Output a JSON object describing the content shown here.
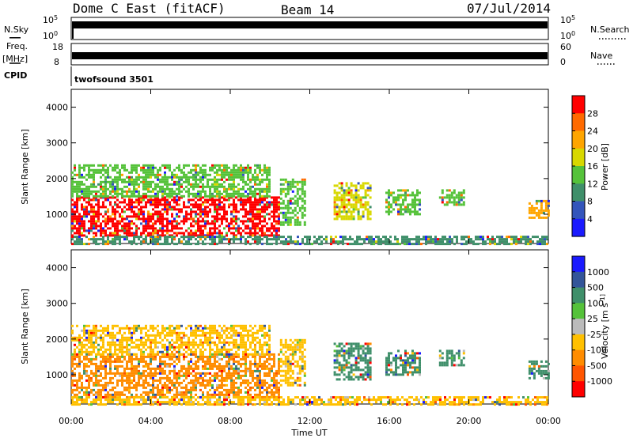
{
  "header": {
    "site": "Dome C East (fitACF)",
    "beam": "Beam 14",
    "date": "07/Jul/2014"
  },
  "upper_panels": {
    "nsky_label": "N.Sky",
    "nsky_ticks": [
      "10^5",
      "10^0"
    ],
    "nsearch_label": "N.Search",
    "nsearch_ticks": [
      "10^5",
      "10^0"
    ],
    "freq_label": "Freq.",
    "freq_unit": "[MHz]",
    "freq_ticks": [
      "18",
      "8"
    ],
    "nave_label": "Nave",
    "nave_ticks": [
      "60",
      "0"
    ],
    "cpid_label": "CPID",
    "cpid_text": "twofsound 3501"
  },
  "chart_data": [
    {
      "type": "heatmap",
      "name": "power-panel",
      "xlabel": "",
      "ylabel": "Slant Range [km]",
      "xlim": [
        0,
        24
      ],
      "ylim": [
        180,
        4500
      ],
      "yticks": [
        "1000",
        "2000",
        "3000",
        "4000"
      ],
      "colorbar": {
        "label": "Power [dB]",
        "ticks": [
          "4",
          "8",
          "12",
          "16",
          "20",
          "24",
          "28"
        ],
        "colors": [
          "#1a1aff",
          "#3355bb",
          "#3f8f6a",
          "#55c23a",
          "#d8d800",
          "#ffa500",
          "#ff6a00",
          "#ff0000"
        ]
      },
      "regions": [
        {
          "t0": 0.0,
          "t1": 10.5,
          "r0": 400,
          "r1": 1500,
          "level": 28
        },
        {
          "t0": 0.0,
          "t1": 10.0,
          "r0": 1500,
          "r1": 2400,
          "level": 12
        },
        {
          "t0": 10.5,
          "t1": 11.8,
          "r0": 700,
          "r1": 2000,
          "level": 12
        },
        {
          "t0": 13.2,
          "t1": 15.0,
          "r0": 900,
          "r1": 1900,
          "level": 16
        },
        {
          "t0": 15.8,
          "t1": 17.5,
          "r0": 1000,
          "r1": 1700,
          "level": 12
        },
        {
          "t0": 18.5,
          "t1": 19.8,
          "r0": 1300,
          "r1": 1700,
          "level": 12
        },
        {
          "t0": 23.0,
          "t1": 24.0,
          "r0": 900,
          "r1": 1400,
          "level": 20
        },
        {
          "t0": 0.0,
          "t1": 24.0,
          "r0": 180,
          "r1": 400,
          "level": 8
        }
      ]
    },
    {
      "type": "heatmap",
      "name": "velocity-panel",
      "xlabel": "Time UT",
      "ylabel": "Slant Range [km]",
      "xlim": [
        0,
        24
      ],
      "ylim": [
        180,
        4500
      ],
      "xticks": [
        "00:00",
        "04:00",
        "08:00",
        "12:00",
        "16:00",
        "20:00",
        "00:00"
      ],
      "yticks": [
        "1000",
        "2000",
        "3000",
        "4000"
      ],
      "colorbar": {
        "label": "Velocity [m s^-1]",
        "ticks": [
          "1000",
          "500",
          "100",
          "25",
          "-25",
          "-100",
          "-500",
          "-1000"
        ],
        "colors": [
          "#1a1aff",
          "#335599",
          "#3f8f6a",
          "#55c23a",
          "#bbbbbb",
          "#ffc000",
          "#ff8c00",
          "#ff5500",
          "#ff0000"
        ]
      },
      "regions": [
        {
          "t0": 0.0,
          "t1": 10.5,
          "r0": 400,
          "r1": 1600,
          "level": -300
        },
        {
          "t0": 0.0,
          "t1": 10.0,
          "r0": 1600,
          "r1": 2400,
          "level": -100
        },
        {
          "t0": 10.5,
          "t1": 11.8,
          "r0": 700,
          "r1": 2000,
          "level": -100
        },
        {
          "t0": 13.2,
          "t1": 15.0,
          "r0": 900,
          "r1": 1900,
          "level": 100
        },
        {
          "t0": 15.8,
          "t1": 17.5,
          "r0": 1000,
          "r1": 1700,
          "level": 100
        },
        {
          "t0": 18.5,
          "t1": 19.8,
          "r0": 1300,
          "r1": 1700,
          "level": 100
        },
        {
          "t0": 23.0,
          "t1": 24.0,
          "r0": 900,
          "r1": 1400,
          "level": 100
        },
        {
          "t0": 0.0,
          "t1": 24.0,
          "r0": 180,
          "r1": 400,
          "level": -50
        }
      ]
    }
  ]
}
